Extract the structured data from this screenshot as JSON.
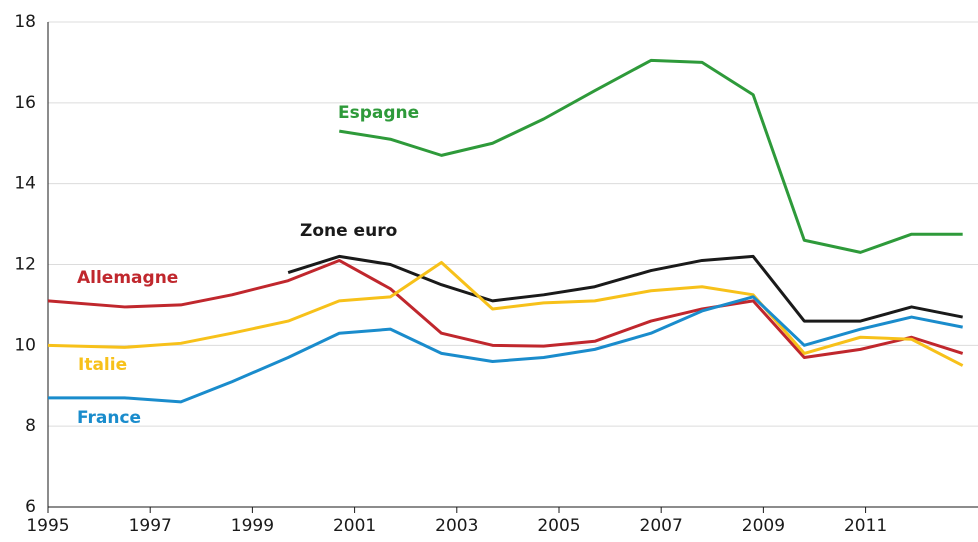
{
  "chart_data": {
    "type": "line",
    "x": [
      1995,
      1996.5,
      1997.6,
      1998.6,
      1999.7,
      2000.7,
      2001.7,
      2002.7,
      2003.7,
      2004.7,
      2005.7,
      2006.8,
      2007.8,
      2008.8,
      2009.8,
      2010.9,
      2011.9,
      2012.9
    ],
    "series": [
      {
        "name": "Espagne",
        "color": "#2e9a3a",
        "values": [
          null,
          null,
          null,
          null,
          null,
          15.3,
          15.1,
          14.7,
          15.0,
          15.6,
          16.3,
          17.05,
          17.0,
          16.2,
          12.6,
          12.3,
          12.75,
          12.75
        ]
      },
      {
        "name": "Zone euro",
        "color": "#1a1a1a",
        "values": [
          null,
          null,
          null,
          null,
          11.8,
          12.2,
          12.0,
          11.5,
          11.1,
          11.25,
          11.45,
          11.85,
          12.1,
          12.2,
          10.6,
          10.6,
          10.95,
          10.7
        ]
      },
      {
        "name": "Allemagne",
        "color": "#c0272d",
        "values": [
          11.1,
          10.95,
          11.0,
          11.25,
          11.6,
          12.1,
          11.4,
          10.3,
          10.0,
          9.98,
          10.1,
          10.6,
          10.9,
          11.1,
          9.7,
          9.9,
          10.2,
          9.8
        ]
      },
      {
        "name": "Italie",
        "color": "#f7c11a",
        "values": [
          10.0,
          9.95,
          10.05,
          10.3,
          10.6,
          11.1,
          11.2,
          12.05,
          10.9,
          11.05,
          11.1,
          11.35,
          11.45,
          11.25,
          9.8,
          10.2,
          10.15,
          9.5
        ]
      },
      {
        "name": "France",
        "color": "#1a8ccc",
        "values": [
          8.7,
          8.7,
          8.6,
          9.1,
          9.7,
          10.3,
          10.4,
          9.8,
          9.6,
          9.7,
          9.9,
          10.3,
          10.85,
          11.2,
          10.0,
          10.4,
          10.7,
          10.45
        ]
      }
    ],
    "xlim": [
      1995,
      2013.2
    ],
    "xticks": [
      1995,
      1997,
      1999,
      2001,
      2003,
      2005,
      2007,
      2009,
      2011
    ],
    "ylim": [
      6,
      18
    ],
    "yticks": [
      6,
      8,
      10,
      12,
      14,
      16,
      18
    ],
    "grid": true
  }
}
